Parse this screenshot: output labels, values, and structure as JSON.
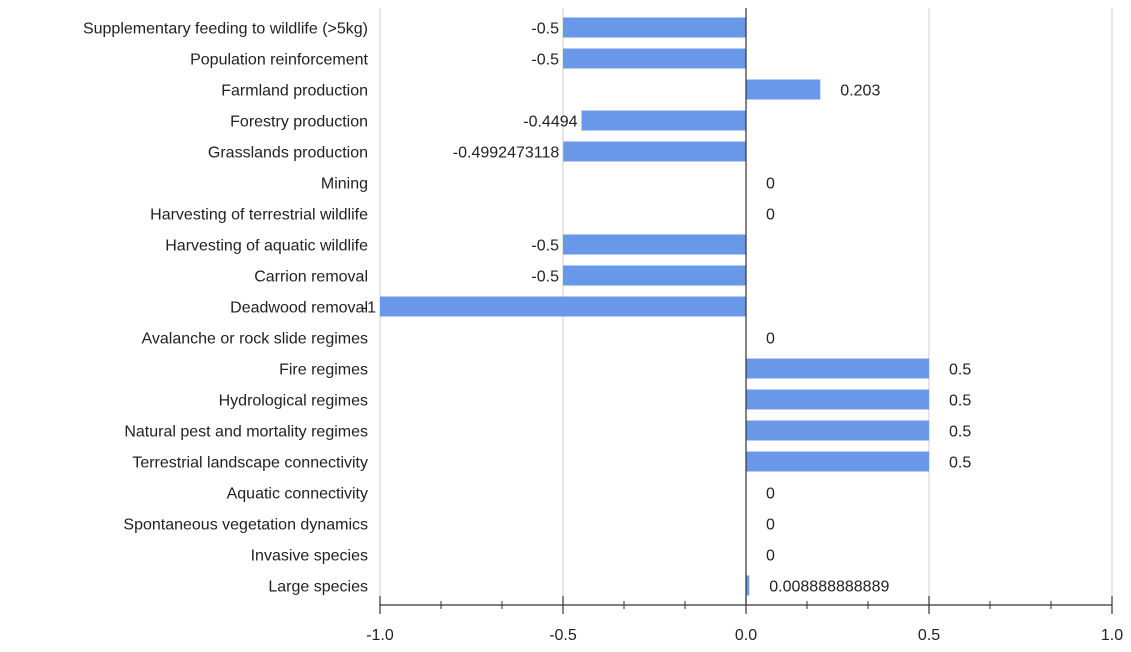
{
  "chart_data": {
    "type": "bar",
    "orientation": "horizontal",
    "title": "",
    "xlabel": "",
    "ylabel": "",
    "xlim": [
      -1.0,
      1.0
    ],
    "grid": true,
    "legend": "none",
    "bar_color": "#6a98e8",
    "categories": [
      "Supplementary feeding to wildlife (>5kg)",
      "Population reinforcement",
      "Farmland production",
      "Forestry production",
      "Grasslands production",
      "Mining",
      "Harvesting of terrestrial wildlife",
      "Harvesting of aquatic wildlife",
      "Carrion removal",
      "Deadwood removal",
      "Avalanche or rock slide regimes",
      "Fire regimes",
      "Hydrological regimes",
      "Natural pest and mortality regimes",
      "Terrestrial landscape connectivity",
      "Aquatic connectivity",
      "Spontaneous vegetation dynamics",
      "Invasive species",
      "Large species"
    ],
    "values": [
      -0.5,
      -0.5,
      0.203,
      -0.4494,
      -0.4992473118,
      0,
      0,
      -0.5,
      -0.5,
      -1,
      0,
      0.5,
      0.5,
      0.5,
      0.5,
      0,
      0,
      0,
      0.008888888889
    ],
    "data_labels": [
      "-0.5",
      "-0.5",
      "0.203",
      "-0.4494",
      "-0.4992473118",
      "0",
      "0",
      "-0.5",
      "-0.5",
      "-1",
      "0",
      "0.5",
      "0.5",
      "0.5",
      "0.5",
      "0",
      "0",
      "0",
      "0.008888888889"
    ],
    "x_ticks": [
      -1.0,
      -0.5,
      0.0,
      0.5,
      1.0
    ],
    "x_tick_labels": [
      "-1.0",
      "-0.5",
      "0.0",
      "0.5",
      "1.0"
    ]
  }
}
